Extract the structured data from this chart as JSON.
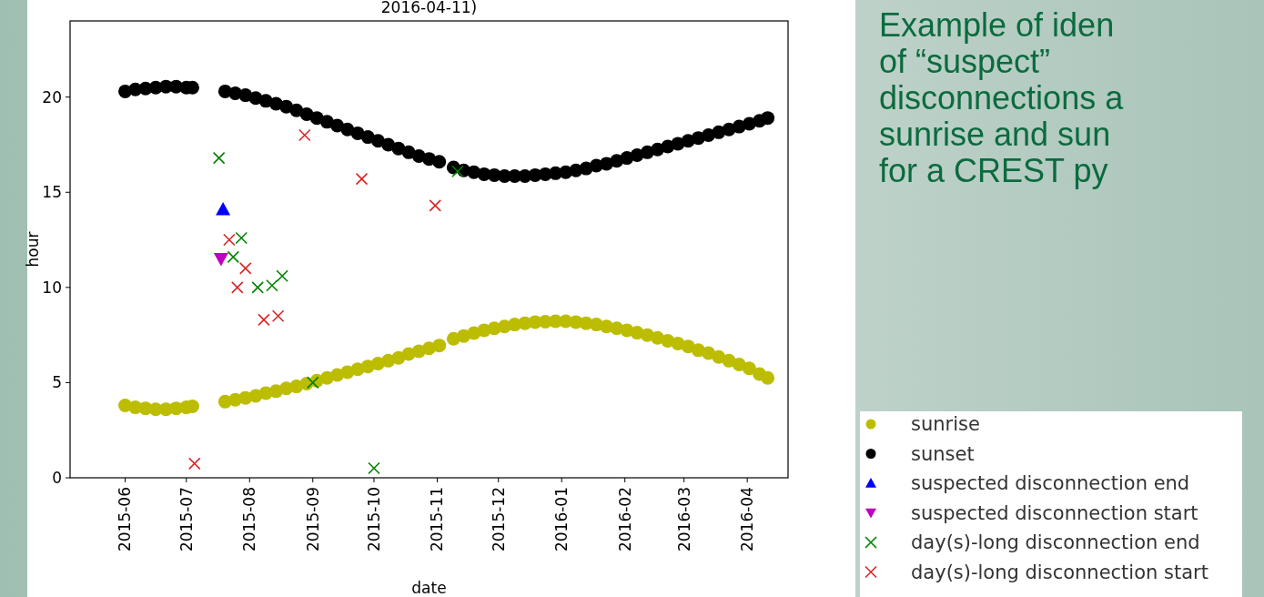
{
  "chart_data": {
    "type": "scatter",
    "title": "2016-04-11)",
    "xlabel": "date",
    "ylabel": "hour",
    "xlim": [
      "2015-05-05",
      "2016-04-21"
    ],
    "ylim": [
      0,
      24
    ],
    "xticks": [
      {
        "value": "2015-06-01",
        "label": "2015-06"
      },
      {
        "value": "2015-07-01",
        "label": "2015-07"
      },
      {
        "value": "2015-08-01",
        "label": "2015-08"
      },
      {
        "value": "2015-09-01",
        "label": "2015-09"
      },
      {
        "value": "2015-10-01",
        "label": "2015-10"
      },
      {
        "value": "2015-11-01",
        "label": "2015-11"
      },
      {
        "value": "2015-12-01",
        "label": "2015-12"
      },
      {
        "value": "2016-01-01",
        "label": "2016-01"
      },
      {
        "value": "2016-02-01",
        "label": "2016-02"
      },
      {
        "value": "2016-03-01",
        "label": "2016-03"
      },
      {
        "value": "2016-04-01",
        "label": "2016-04"
      }
    ],
    "yticks": [
      0,
      5,
      10,
      15,
      20
    ],
    "grid": false,
    "legend": "bottom right",
    "annotations": [
      "Example of iden\nof “suspect”\ndisconnections a\nsunrise and sun\nfor a CREST py"
    ],
    "series": [
      {
        "name": "sunrise",
        "color": "#bcbd00",
        "marker": "circle",
        "x": [
          "2015-06-01",
          "2015-06-06",
          "2015-06-11",
          "2015-06-16",
          "2015-06-21",
          "2015-06-26",
          "2015-07-01",
          "2015-07-04",
          "2015-07-20",
          "2015-07-25",
          "2015-07-30",
          "2015-08-04",
          "2015-08-09",
          "2015-08-14",
          "2015-08-19",
          "2015-08-24",
          "2015-08-29",
          "2015-09-03",
          "2015-09-08",
          "2015-09-13",
          "2015-09-18",
          "2015-09-23",
          "2015-09-28",
          "2015-10-03",
          "2015-10-08",
          "2015-10-13",
          "2015-10-18",
          "2015-10-23",
          "2015-10-28",
          "2015-11-02",
          "2015-11-09",
          "2015-11-14",
          "2015-11-19",
          "2015-11-24",
          "2015-11-29",
          "2015-12-04",
          "2015-12-09",
          "2015-12-14",
          "2015-12-19",
          "2015-12-24",
          "2015-12-29",
          "2016-01-03",
          "2016-01-08",
          "2016-01-13",
          "2016-01-18",
          "2016-01-23",
          "2016-01-28",
          "2016-02-02",
          "2016-02-07",
          "2016-02-12",
          "2016-02-17",
          "2016-02-22",
          "2016-02-27",
          "2016-03-03",
          "2016-03-08",
          "2016-03-13",
          "2016-03-18",
          "2016-03-23",
          "2016-03-28",
          "2016-04-02",
          "2016-04-07",
          "2016-04-11"
        ],
        "values": [
          3.8,
          3.7,
          3.65,
          3.6,
          3.6,
          3.65,
          3.7,
          3.75,
          4.0,
          4.1,
          4.2,
          4.3,
          4.45,
          4.55,
          4.7,
          4.8,
          4.95,
          5.1,
          5.25,
          5.4,
          5.55,
          5.7,
          5.85,
          6.0,
          6.15,
          6.3,
          6.5,
          6.65,
          6.8,
          6.95,
          7.3,
          7.45,
          7.6,
          7.75,
          7.85,
          7.95,
          8.05,
          8.12,
          8.18,
          8.2,
          8.22,
          8.22,
          8.18,
          8.12,
          8.05,
          7.95,
          7.85,
          7.75,
          7.62,
          7.5,
          7.35,
          7.2,
          7.05,
          6.9,
          6.7,
          6.55,
          6.35,
          6.15,
          5.95,
          5.75,
          5.45,
          5.25
        ]
      },
      {
        "name": "sunset",
        "color": "#000000",
        "marker": "circle",
        "x": [
          "2015-06-01",
          "2015-06-06",
          "2015-06-11",
          "2015-06-16",
          "2015-06-21",
          "2015-06-26",
          "2015-07-01",
          "2015-07-04",
          "2015-07-20",
          "2015-07-25",
          "2015-07-30",
          "2015-08-04",
          "2015-08-09",
          "2015-08-14",
          "2015-08-19",
          "2015-08-24",
          "2015-08-29",
          "2015-09-03",
          "2015-09-08",
          "2015-09-13",
          "2015-09-18",
          "2015-09-23",
          "2015-09-28",
          "2015-10-03",
          "2015-10-08",
          "2015-10-13",
          "2015-10-18",
          "2015-10-23",
          "2015-10-28",
          "2015-11-02",
          "2015-11-09",
          "2015-11-14",
          "2015-11-19",
          "2015-11-24",
          "2015-11-29",
          "2015-12-04",
          "2015-12-09",
          "2015-12-14",
          "2015-12-19",
          "2015-12-24",
          "2015-12-29",
          "2016-01-03",
          "2016-01-08",
          "2016-01-13",
          "2016-01-18",
          "2016-01-23",
          "2016-01-28",
          "2016-02-02",
          "2016-02-07",
          "2016-02-12",
          "2016-02-17",
          "2016-02-22",
          "2016-02-27",
          "2016-03-03",
          "2016-03-08",
          "2016-03-13",
          "2016-03-18",
          "2016-03-23",
          "2016-03-28",
          "2016-04-02",
          "2016-04-07",
          "2016-04-11"
        ],
        "values": [
          20.3,
          20.4,
          20.45,
          20.5,
          20.55,
          20.55,
          20.5,
          20.5,
          20.3,
          20.2,
          20.1,
          19.95,
          19.8,
          19.65,
          19.5,
          19.3,
          19.1,
          18.9,
          18.7,
          18.5,
          18.3,
          18.1,
          17.9,
          17.7,
          17.5,
          17.3,
          17.1,
          16.9,
          16.75,
          16.6,
          16.3,
          16.15,
          16.05,
          15.95,
          15.9,
          15.85,
          15.85,
          15.85,
          15.9,
          15.95,
          16.0,
          16.05,
          16.15,
          16.25,
          16.4,
          16.5,
          16.65,
          16.8,
          16.95,
          17.1,
          17.25,
          17.4,
          17.55,
          17.7,
          17.85,
          18.0,
          18.15,
          18.3,
          18.45,
          18.6,
          18.75,
          18.9
        ]
      },
      {
        "name": "suspected disconnection end",
        "color": "#0000ff",
        "marker": "triangle",
        "x": [
          "2015-07-19"
        ],
        "values": [
          14.1
        ]
      },
      {
        "name": "suspected disconnection start",
        "color": "#bf00bf",
        "marker": "triangle-down",
        "x": [
          "2015-07-18"
        ],
        "values": [
          11.5
        ]
      },
      {
        "name": "day(s)-long disconnection end",
        "color": "#008000",
        "marker": "cross",
        "x": [
          "2015-07-17",
          "2015-07-28",
          "2015-07-24",
          "2015-08-05",
          "2015-08-12",
          "2015-08-17",
          "2015-09-01",
          "2015-10-01",
          "2015-11-11"
        ],
        "values": [
          16.8,
          12.6,
          11.6,
          10.0,
          10.1,
          10.6,
          5.0,
          0.5,
          16.1
        ]
      },
      {
        "name": "day(s)-long disconnection start",
        "color": "#d62728",
        "marker": "cross",
        "x": [
          "2015-07-05",
          "2015-07-22",
          "2015-07-30",
          "2015-07-26",
          "2015-08-08",
          "2015-08-15",
          "2015-08-28",
          "2015-09-25",
          "2015-10-31"
        ],
        "values": [
          0.75,
          12.5,
          11.0,
          10.0,
          8.3,
          8.5,
          18.0,
          15.7,
          14.3
        ]
      }
    ]
  }
}
